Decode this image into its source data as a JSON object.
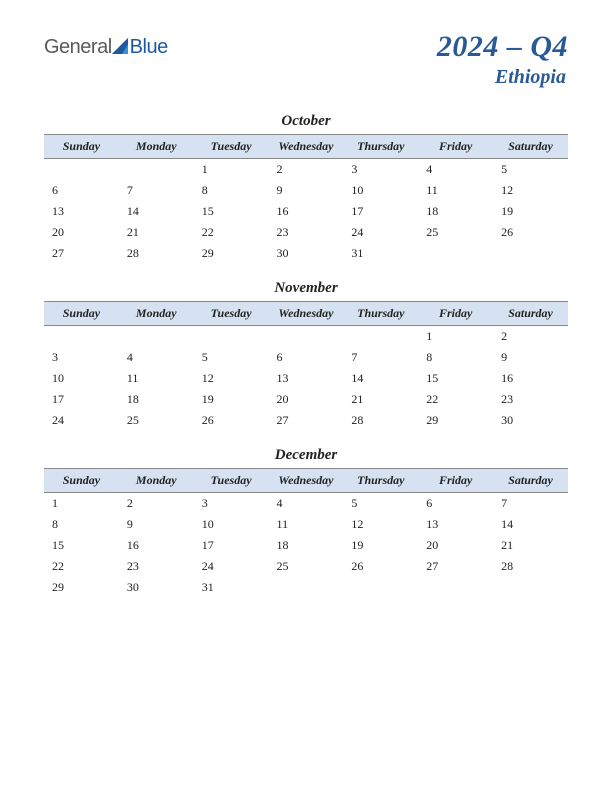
{
  "logo": {
    "text1": "General",
    "text2": "Blue"
  },
  "title": {
    "main": "2024 – Q4",
    "sub": "Ethiopia"
  },
  "colors": {
    "header_bg": "#d6e2f2",
    "title_color": "#2a5a95",
    "logo_gray": "#5a5a5a",
    "logo_blue": "#1b5a9e",
    "text": "#222222",
    "border": "#888888"
  },
  "day_headers": [
    "Sunday",
    "Monday",
    "Tuesday",
    "Wednesday",
    "Thursday",
    "Friday",
    "Saturday"
  ],
  "months": [
    {
      "name": "October",
      "weeks": [
        [
          "",
          "",
          "1",
          "2",
          "3",
          "4",
          "5"
        ],
        [
          "6",
          "7",
          "8",
          "9",
          "10",
          "11",
          "12"
        ],
        [
          "13",
          "14",
          "15",
          "16",
          "17",
          "18",
          "19"
        ],
        [
          "20",
          "21",
          "22",
          "23",
          "24",
          "25",
          "26"
        ],
        [
          "27",
          "28",
          "29",
          "30",
          "31",
          "",
          ""
        ]
      ]
    },
    {
      "name": "November",
      "weeks": [
        [
          "",
          "",
          "",
          "",
          "",
          "1",
          "2"
        ],
        [
          "3",
          "4",
          "5",
          "6",
          "7",
          "8",
          "9"
        ],
        [
          "10",
          "11",
          "12",
          "13",
          "14",
          "15",
          "16"
        ],
        [
          "17",
          "18",
          "19",
          "20",
          "21",
          "22",
          "23"
        ],
        [
          "24",
          "25",
          "26",
          "27",
          "28",
          "29",
          "30"
        ]
      ]
    },
    {
      "name": "December",
      "weeks": [
        [
          "1",
          "2",
          "3",
          "4",
          "5",
          "6",
          "7"
        ],
        [
          "8",
          "9",
          "10",
          "11",
          "12",
          "13",
          "14"
        ],
        [
          "15",
          "16",
          "17",
          "18",
          "19",
          "20",
          "21"
        ],
        [
          "22",
          "23",
          "24",
          "25",
          "26",
          "27",
          "28"
        ],
        [
          "29",
          "30",
          "31",
          "",
          "",
          "",
          ""
        ]
      ]
    }
  ]
}
